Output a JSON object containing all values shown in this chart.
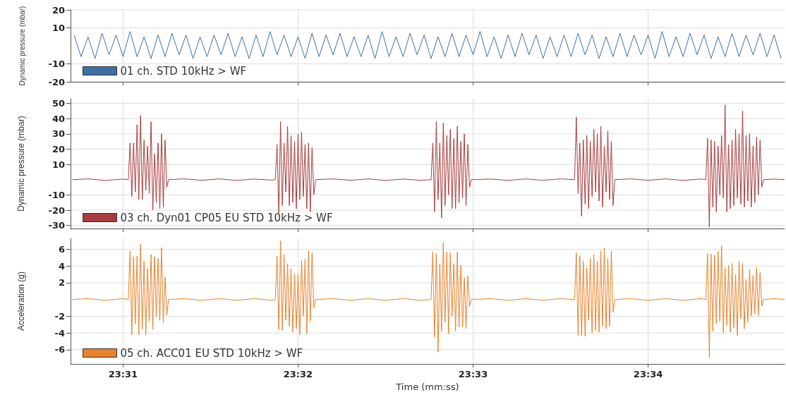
{
  "chart_data": [
    {
      "type": "line",
      "ylabel": "Dynamic pressure (mbar)",
      "xlim": [
        1410.7,
        1414.78
      ],
      "xticks": [
        1411,
        1412,
        1413,
        1414
      ],
      "ylim": [
        -20,
        20
      ],
      "yticks": [
        -20,
        -10,
        10,
        20
      ],
      "grid": true,
      "legend": "bottom left",
      "tick_labels": "y",
      "series": [
        {
          "name": "01 ch. STD 10kHz > WF",
          "color": "#3f6fa6",
          "x": [
            1410.72,
            1410.76,
            1410.8,
            1410.84,
            1410.88,
            1410.92,
            1410.96,
            1411.0,
            1411.04,
            1411.08,
            1411.12,
            1411.16,
            1411.2,
            1411.24,
            1411.28,
            1411.32,
            1411.36,
            1411.4,
            1411.44,
            1411.48,
            1411.52,
            1411.56,
            1411.6,
            1411.64,
            1411.68,
            1411.72,
            1411.76,
            1411.8,
            1411.84,
            1411.88,
            1411.92,
            1411.96,
            1412.0,
            1412.04,
            1412.08,
            1412.12,
            1412.16,
            1412.2,
            1412.24,
            1412.28,
            1412.32,
            1412.36,
            1412.4,
            1412.44,
            1412.48,
            1412.52,
            1412.56,
            1412.6,
            1412.64,
            1412.68,
            1412.72,
            1412.76,
            1412.8,
            1412.84,
            1412.88,
            1412.92,
            1412.96,
            1413.0,
            1413.04,
            1413.08,
            1413.12,
            1413.16,
            1413.2,
            1413.24,
            1413.28,
            1413.32,
            1413.36,
            1413.4,
            1413.44,
            1413.48,
            1413.52,
            1413.56,
            1413.6,
            1413.64,
            1413.68,
            1413.72,
            1413.76,
            1413.8,
            1413.84,
            1413.88,
            1413.92,
            1413.96,
            1414.0,
            1414.04,
            1414.08,
            1414.12,
            1414.16,
            1414.2,
            1414.24,
            1414.28,
            1414.32,
            1414.36,
            1414.4,
            1414.44,
            1414.48,
            1414.52,
            1414.56,
            1414.6,
            1414.64,
            1414.68,
            1414.72,
            1414.76
          ],
          "values": [
            6,
            -6,
            5,
            -7,
            7,
            -5,
            6,
            -6,
            8,
            -6,
            5,
            -7,
            6,
            -6,
            7,
            -5,
            6,
            -7,
            5,
            -6,
            6,
            -5,
            7,
            -6,
            5,
            -7,
            6,
            -6,
            8,
            -5,
            6,
            -6,
            5,
            -7,
            7,
            -6,
            6,
            -5,
            7,
            -6,
            5,
            -6,
            6,
            -7,
            8,
            -6,
            5,
            -6,
            7,
            -5,
            6,
            -7,
            5,
            -6,
            7,
            -6,
            6,
            -5,
            8,
            -6,
            5,
            -7,
            6,
            -6,
            7,
            -5,
            6,
            -7,
            5,
            -6,
            6,
            -6,
            7,
            -5,
            6,
            -7,
            5,
            -6,
            7,
            -6,
            6,
            -5,
            6,
            -7,
            8,
            -6,
            5,
            -6,
            7,
            -5,
            6,
            -7,
            5,
            -6,
            7,
            -6,
            6,
            -5,
            7,
            -6,
            6,
            -7
          ]
        }
      ]
    },
    {
      "type": "line",
      "ylabel": "Dynamic pressure (mbar)",
      "xlim": [
        1410.7,
        1414.78
      ],
      "xticks": [
        1411,
        1412,
        1413,
        1414
      ],
      "ylim": [
        -32,
        53
      ],
      "yticks": [
        -30,
        -20,
        -10,
        10,
        20,
        30,
        40,
        50
      ],
      "grid": true,
      "legend": "bottom left",
      "tick_labels": "y",
      "series": [
        {
          "name": "03 ch. Dyn01 CP05 EU STD 10kHz > WF",
          "color": "#a83c3c",
          "x": [
            1410.71,
            1410.8,
            1410.9,
            1411.0,
            1411.03,
            1411.04,
            1411.05,
            1411.06,
            1411.07,
            1411.08,
            1411.09,
            1411.1,
            1411.11,
            1411.12,
            1411.13,
            1411.14,
            1411.15,
            1411.16,
            1411.17,
            1411.18,
            1411.19,
            1411.2,
            1411.21,
            1411.22,
            1411.23,
            1411.24,
            1411.25,
            1411.26,
            1411.35,
            1411.45,
            1411.55,
            1411.65,
            1411.75,
            1411.85,
            1411.87,
            1411.88,
            1411.89,
            1411.9,
            1411.91,
            1411.92,
            1411.93,
            1411.94,
            1411.95,
            1411.96,
            1411.97,
            1411.98,
            1411.99,
            1412.0,
            1412.01,
            1412.02,
            1412.03,
            1412.04,
            1412.05,
            1412.06,
            1412.07,
            1412.08,
            1412.09,
            1412.1,
            1412.2,
            1412.3,
            1412.4,
            1412.5,
            1412.6,
            1412.7,
            1412.76,
            1412.77,
            1412.78,
            1412.79,
            1412.8,
            1412.81,
            1412.82,
            1412.83,
            1412.84,
            1412.85,
            1412.86,
            1412.87,
            1412.88,
            1412.89,
            1412.9,
            1412.91,
            1412.92,
            1412.93,
            1412.94,
            1412.95,
            1412.96,
            1412.97,
            1412.98,
            1412.99,
            1413.1,
            1413.2,
            1413.3,
            1413.4,
            1413.5,
            1413.58,
            1413.59,
            1413.6,
            1413.61,
            1413.62,
            1413.63,
            1413.64,
            1413.65,
            1413.66,
            1413.67,
            1413.68,
            1413.69,
            1413.7,
            1413.71,
            1413.72,
            1413.73,
            1413.74,
            1413.75,
            1413.76,
            1413.77,
            1413.78,
            1413.79,
            1413.8,
            1413.81,
            1413.9,
            1414.0,
            1414.1,
            1414.2,
            1414.3,
            1414.33,
            1414.34,
            1414.35,
            1414.36,
            1414.37,
            1414.38,
            1414.39,
            1414.4,
            1414.41,
            1414.42,
            1414.43,
            1414.44,
            1414.45,
            1414.46,
            1414.47,
            1414.48,
            1414.49,
            1414.5,
            1414.51,
            1414.52,
            1414.53,
            1414.54,
            1414.55,
            1414.56,
            1414.57,
            1414.58,
            1414.59,
            1414.6,
            1414.61,
            1414.62,
            1414.63,
            1414.64,
            1414.65,
            1414.66,
            1414.72,
            1414.78
          ],
          "values": [
            0,
            0.5,
            -0.5,
            0.4,
            0,
            24,
            -11,
            24,
            -8,
            36,
            -13,
            42,
            -13,
            26,
            -7,
            22,
            -9,
            38,
            -20,
            17,
            -15,
            24,
            -19,
            30,
            -18,
            26,
            -5,
            0,
            0.5,
            -0.4,
            0.5,
            -0.5,
            0.4,
            -0.3,
            0,
            23,
            -22,
            38,
            -17,
            24,
            -8,
            35,
            -17,
            29,
            -15,
            25,
            -19,
            30,
            -13,
            31,
            -11,
            23,
            -19,
            24,
            -21,
            21,
            -10,
            0,
            0.5,
            -0.4,
            0.5,
            -0.5,
            0.4,
            -0.4,
            0,
            24,
            -21,
            38,
            -13,
            24,
            -25,
            37,
            -17,
            29,
            -10,
            33,
            -19,
            27,
            -19,
            35,
            -15,
            25,
            -12,
            30,
            -17,
            23,
            -5,
            0,
            0.4,
            -0.5,
            0.5,
            -0.4,
            0.5,
            0,
            41,
            -9,
            24,
            -24,
            26,
            -16,
            29,
            -19,
            25,
            -11,
            33,
            -8,
            30,
            -14,
            35,
            -18,
            22,
            -8,
            32,
            -13,
            25,
            -17,
            0,
            0.5,
            -0.4,
            0.5,
            -0.5,
            0.4,
            0,
            27,
            -31,
            26,
            -18,
            25,
            -21,
            22,
            -10,
            29,
            -12,
            49,
            -21,
            23,
            -19,
            26,
            -17,
            33,
            -12,
            30,
            -16,
            45,
            -18,
            29,
            -14,
            30,
            -18,
            22,
            -15,
            28,
            -10,
            26,
            -5,
            0,
            0.4,
            0
          ]
        }
      ]
    },
    {
      "type": "line",
      "ylabel": "Acceleration (g)",
      "xlabel": "Time (mm:ss)",
      "xlim": [
        1410.7,
        1414.78
      ],
      "xticks": [
        {
          "value": 1411,
          "label": "23:31"
        },
        {
          "value": 1412,
          "label": "23:32"
        },
        {
          "value": 1413,
          "label": "23:33"
        },
        {
          "value": 1414,
          "label": "23:34"
        }
      ],
      "ylim": [
        -7.7,
        7.3
      ],
      "yticks": [
        -6,
        -4,
        -2,
        2,
        4,
        6
      ],
      "grid": true,
      "legend": "bottom left",
      "series": [
        {
          "name": "05 ch. ACC01 EU STD 10kHz > WF",
          "color": "#e8822a",
          "x": [
            1410.71,
            1410.8,
            1410.9,
            1411.0,
            1411.03,
            1411.04,
            1411.05,
            1411.06,
            1411.07,
            1411.08,
            1411.09,
            1411.1,
            1411.11,
            1411.12,
            1411.13,
            1411.14,
            1411.15,
            1411.16,
            1411.17,
            1411.18,
            1411.19,
            1411.2,
            1411.21,
            1411.22,
            1411.23,
            1411.24,
            1411.25,
            1411.26,
            1411.35,
            1411.45,
            1411.55,
            1411.65,
            1411.75,
            1411.85,
            1411.87,
            1411.88,
            1411.89,
            1411.9,
            1411.91,
            1411.92,
            1411.93,
            1411.94,
            1411.95,
            1411.96,
            1411.97,
            1411.98,
            1411.99,
            1412.0,
            1412.01,
            1412.02,
            1412.03,
            1412.04,
            1412.05,
            1412.06,
            1412.07,
            1412.08,
            1412.09,
            1412.1,
            1412.2,
            1412.3,
            1412.4,
            1412.5,
            1412.6,
            1412.7,
            1412.76,
            1412.77,
            1412.78,
            1412.79,
            1412.8,
            1412.81,
            1412.82,
            1412.83,
            1412.84,
            1412.85,
            1412.86,
            1412.87,
            1412.88,
            1412.89,
            1412.9,
            1412.91,
            1412.92,
            1412.93,
            1412.94,
            1412.95,
            1412.96,
            1412.97,
            1412.98,
            1412.99,
            1413.1,
            1413.2,
            1413.3,
            1413.4,
            1413.5,
            1413.58,
            1413.59,
            1413.6,
            1413.61,
            1413.62,
            1413.63,
            1413.64,
            1413.65,
            1413.66,
            1413.67,
            1413.68,
            1413.69,
            1413.7,
            1413.71,
            1413.72,
            1413.73,
            1413.74,
            1413.75,
            1413.76,
            1413.77,
            1413.78,
            1413.79,
            1413.8,
            1413.81,
            1413.9,
            1414.0,
            1414.1,
            1414.2,
            1414.3,
            1414.33,
            1414.34,
            1414.35,
            1414.36,
            1414.37,
            1414.38,
            1414.39,
            1414.4,
            1414.41,
            1414.42,
            1414.43,
            1414.44,
            1414.45,
            1414.46,
            1414.47,
            1414.48,
            1414.49,
            1414.5,
            1414.51,
            1414.52,
            1414.53,
            1414.54,
            1414.55,
            1414.56,
            1414.57,
            1414.58,
            1414.59,
            1414.6,
            1414.61,
            1414.62,
            1414.63,
            1414.64,
            1414.65,
            1414.66,
            1414.72,
            1414.78
          ],
          "values": [
            0,
            0.1,
            -0.1,
            0.1,
            0,
            5.8,
            -4.2,
            5.1,
            -2.9,
            5.2,
            -4.2,
            6.6,
            -3.5,
            4.6,
            -4.2,
            3.7,
            -2.6,
            5.4,
            -3.6,
            5.1,
            -2.1,
            4.9,
            -2.5,
            6.2,
            -2.8,
            2.7,
            -1.9,
            0,
            0.1,
            -0.1,
            0.1,
            -0.1,
            0.1,
            -0.1,
            0,
            5.2,
            -3.6,
            7.0,
            -3.7,
            5.4,
            -2.5,
            4.3,
            -3.2,
            3.7,
            -3.9,
            3.1,
            -3.5,
            3.0,
            -4.2,
            4.7,
            -2.0,
            4.8,
            -4.1,
            5.8,
            -2.6,
            5.6,
            -1.0,
            0,
            0.1,
            -0.1,
            0.1,
            -0.1,
            0.1,
            -0.1,
            0,
            5.7,
            -4.5,
            5.5,
            -6.3,
            4.3,
            -3.8,
            6.8,
            -2.7,
            5.7,
            -4.1,
            5.6,
            -2.0,
            4.3,
            -3.8,
            5.7,
            -3.3,
            4.1,
            -3.3,
            2.6,
            -3.5,
            2.8,
            -0.8,
            0,
            0.1,
            -0.1,
            0.1,
            -0.1,
            0.1,
            0,
            5.6,
            -4.3,
            5.2,
            -4.3,
            4.6,
            -4.4,
            3.8,
            -2.5,
            4.9,
            -4.0,
            5.4,
            -3.7,
            4.6,
            -3.9,
            5.8,
            -3.2,
            6.2,
            -3.5,
            4.9,
            -3.2,
            5.8,
            -1.5,
            0,
            0.1,
            -0.1,
            0.1,
            -0.1,
            0.1,
            0,
            5.5,
            -6.9,
            5.4,
            -3.8,
            5.3,
            -2.9,
            5.8,
            -2.6,
            6.4,
            -4.0,
            3.8,
            -3.1,
            4.1,
            -3.9,
            4.3,
            -3.4,
            3.0,
            -4.3,
            4.6,
            -2.3,
            4.3,
            -3.5,
            2.4,
            -2.7,
            3.6,
            -2.0,
            2.9,
            -1.7,
            3.8,
            -1.9,
            3.2,
            -0.8,
            0,
            0.1,
            0
          ]
        }
      ]
    }
  ]
}
